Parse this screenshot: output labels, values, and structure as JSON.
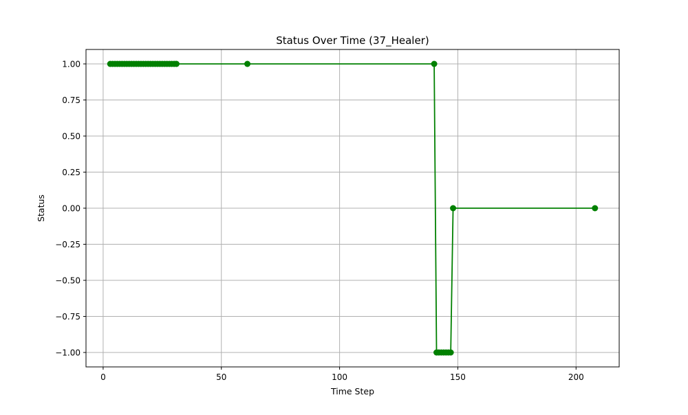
{
  "chart_data": {
    "type": "line",
    "title": "Status Over Time (37_Healer)",
    "xlabel": "Time Step",
    "ylabel": "Status",
    "xlim": [
      -7.25,
      218.25
    ],
    "ylim": [
      -1.1,
      1.1
    ],
    "xticks": [
      0,
      50,
      100,
      150,
      200
    ],
    "yticks": [
      1.0,
      0.75,
      0.5,
      0.25,
      0.0,
      -0.25,
      -0.5,
      -0.75,
      -1.0
    ],
    "xtick_labels": [
      "0",
      "50",
      "100",
      "150",
      "200"
    ],
    "ytick_labels": [
      "1.00",
      "0.75",
      "0.50",
      "0.25",
      "0.00",
      "−0.25",
      "−0.50",
      "−0.75",
      "−1.00"
    ],
    "grid": true,
    "legend": "none",
    "color": "#008000",
    "marker": "circle",
    "series": [
      {
        "x": [
          3,
          4,
          5,
          6,
          7,
          8,
          9,
          10,
          11,
          12,
          13,
          14,
          15,
          16,
          17,
          18,
          19,
          20,
          21,
          22,
          23,
          24,
          25,
          26,
          27,
          28,
          29,
          30,
          31,
          61,
          140,
          141,
          142,
          143,
          144,
          145,
          146,
          147,
          148,
          208
        ],
        "y": [
          1,
          1,
          1,
          1,
          1,
          1,
          1,
          1,
          1,
          1,
          1,
          1,
          1,
          1,
          1,
          1,
          1,
          1,
          1,
          1,
          1,
          1,
          1,
          1,
          1,
          1,
          1,
          1,
          1,
          1,
          1,
          -1,
          -1,
          -1,
          -1,
          -1,
          -1,
          -1,
          0,
          0
        ]
      }
    ]
  }
}
